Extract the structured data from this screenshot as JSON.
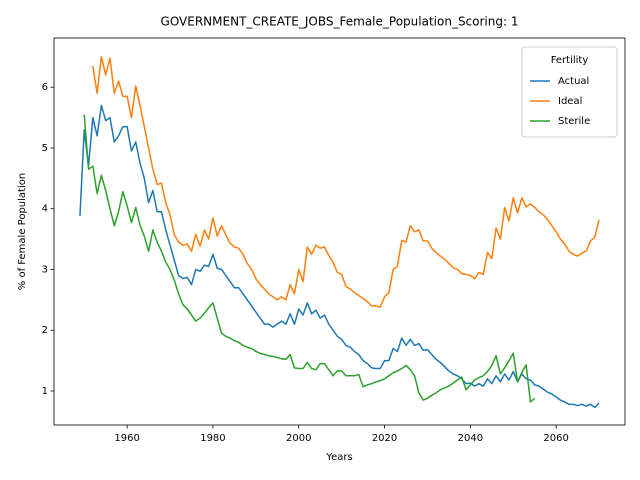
{
  "chart_data": {
    "type": "line",
    "title": "GOVERNMENT_CREATE_JOBS_Female_Population_Scoring: 1",
    "xlabel": "Years",
    "ylabel": "% of Female Population",
    "legend_title": "Fertility",
    "legend": "upper right",
    "xlim": [
      1942.95,
      2076.05
    ],
    "ylim": [
      0.44,
      6.81
    ],
    "xticks": [
      1960,
      1980,
      2000,
      2020,
      2040,
      2060
    ],
    "yticks": [
      1,
      2,
      3,
      4,
      5,
      6
    ],
    "x": [
      1949,
      1950,
      1951,
      1952,
      1953,
      1954,
      1955,
      1956,
      1957,
      1958,
      1959,
      1960,
      1961,
      1962,
      1963,
      1964,
      1965,
      1966,
      1967,
      1968,
      1969,
      1970,
      1971,
      1972,
      1973,
      1974,
      1975,
      1976,
      1977,
      1978,
      1979,
      1980,
      1981,
      1982,
      1983,
      1984,
      1985,
      1986,
      1987,
      1988,
      1989,
      1990,
      1991,
      1992,
      1993,
      1994,
      1995,
      1996,
      1997,
      1998,
      1999,
      2000,
      2001,
      2002,
      2003,
      2004,
      2005,
      2006,
      2007,
      2008,
      2009,
      2010,
      2011,
      2012,
      2013,
      2014,
      2015,
      2016,
      2017,
      2018,
      2019,
      2020,
      2021,
      2022,
      2023,
      2024,
      2025,
      2026,
      2027,
      2028,
      2029,
      2030,
      2031,
      2032,
      2033,
      2034,
      2035,
      2036,
      2037,
      2038,
      2039,
      2040,
      2041,
      2042,
      2043,
      2044,
      2045,
      2046,
      2047,
      2048,
      2049,
      2050,
      2051,
      2052,
      2053,
      2054,
      2055,
      2056,
      2057,
      2058,
      2059,
      2060,
      2061,
      2062,
      2063,
      2064,
      2065,
      2066,
      2067,
      2068,
      2069,
      2070
    ],
    "series": [
      {
        "name": "Actual",
        "color": "#1f77b4",
        "values": [
          3.88,
          5.3,
          4.7,
          5.5,
          5.2,
          5.7,
          5.45,
          5.5,
          5.1,
          5.2,
          5.35,
          5.35,
          4.95,
          5.1,
          4.75,
          4.5,
          4.1,
          4.3,
          3.95,
          3.95,
          3.65,
          3.4,
          3.15,
          2.9,
          2.85,
          2.87,
          2.75,
          3.0,
          2.97,
          3.07,
          3.05,
          3.25,
          3.02,
          3.0,
          2.9,
          2.8,
          2.7,
          2.7,
          2.6,
          2.5,
          2.4,
          2.3,
          2.2,
          2.1,
          2.1,
          2.05,
          2.1,
          2.15,
          2.1,
          2.27,
          2.1,
          2.35,
          2.25,
          2.45,
          2.27,
          2.33,
          2.2,
          2.25,
          2.1,
          2.0,
          1.9,
          1.85,
          1.75,
          1.72,
          1.65,
          1.6,
          1.5,
          1.45,
          1.38,
          1.37,
          1.37,
          1.5,
          1.5,
          1.7,
          1.65,
          1.87,
          1.75,
          1.85,
          1.75,
          1.78,
          1.67,
          1.68,
          1.6,
          1.52,
          1.47,
          1.4,
          1.33,
          1.28,
          1.25,
          1.2,
          1.12,
          1.13,
          1.08,
          1.12,
          1.08,
          1.2,
          1.12,
          1.25,
          1.15,
          1.28,
          1.18,
          1.32,
          1.15,
          1.28,
          1.2,
          1.18,
          1.1,
          1.08,
          1.03,
          0.98,
          0.95,
          0.9,
          0.85,
          0.82,
          0.78,
          0.78,
          0.76,
          0.78,
          0.75,
          0.78,
          0.73,
          0.8
        ]
      },
      {
        "name": "Ideal",
        "color": "#ff7f0e",
        "values": [
          null,
          null,
          null,
          6.35,
          5.9,
          6.5,
          6.2,
          6.48,
          5.9,
          6.1,
          5.85,
          5.85,
          5.5,
          6.02,
          5.7,
          5.35,
          5.0,
          4.65,
          4.4,
          4.42,
          4.1,
          3.9,
          3.57,
          3.45,
          3.4,
          3.42,
          3.3,
          3.58,
          3.38,
          3.65,
          3.5,
          3.85,
          3.55,
          3.72,
          3.57,
          3.43,
          3.37,
          3.35,
          3.25,
          3.1,
          3.0,
          2.85,
          2.75,
          2.68,
          2.6,
          2.55,
          2.5,
          2.55,
          2.5,
          2.75,
          2.6,
          3.0,
          2.8,
          3.37,
          3.25,
          3.4,
          3.35,
          3.37,
          3.23,
          3.12,
          2.95,
          2.92,
          2.72,
          2.68,
          2.62,
          2.57,
          2.52,
          2.47,
          2.4,
          2.4,
          2.38,
          2.55,
          2.62,
          3.0,
          3.05,
          3.48,
          3.45,
          3.72,
          3.62,
          3.65,
          3.47,
          3.47,
          3.35,
          3.28,
          3.22,
          3.17,
          3.1,
          3.03,
          3.0,
          2.93,
          2.92,
          2.9,
          2.85,
          2.95,
          2.92,
          3.28,
          3.18,
          3.68,
          3.5,
          4.02,
          3.8,
          4.18,
          3.93,
          4.18,
          4.03,
          4.08,
          4.02,
          3.95,
          3.9,
          3.82,
          3.72,
          3.62,
          3.5,
          3.42,
          3.3,
          3.25,
          3.22,
          3.27,
          3.3,
          3.47,
          3.53,
          3.82
        ]
      },
      {
        "name": "Sterile",
        "color": "#2ca02c",
        "values": [
          null,
          5.55,
          4.65,
          4.7,
          4.25,
          4.55,
          4.3,
          4.0,
          3.72,
          3.95,
          4.28,
          4.05,
          3.77,
          4.02,
          3.73,
          3.55,
          3.3,
          3.65,
          3.45,
          3.3,
          3.12,
          3.0,
          2.82,
          2.6,
          2.42,
          2.35,
          2.25,
          2.15,
          2.2,
          2.28,
          2.37,
          2.45,
          2.2,
          1.95,
          1.9,
          1.87,
          1.83,
          1.8,
          1.75,
          1.72,
          1.7,
          1.65,
          1.62,
          1.6,
          1.58,
          1.57,
          1.55,
          1.53,
          1.52,
          1.6,
          1.38,
          1.37,
          1.37,
          1.47,
          1.37,
          1.35,
          1.45,
          1.45,
          1.35,
          1.25,
          1.33,
          1.33,
          1.25,
          1.25,
          1.25,
          1.27,
          1.07,
          1.1,
          1.12,
          1.15,
          1.17,
          1.2,
          1.25,
          1.3,
          1.33,
          1.37,
          1.42,
          1.35,
          1.25,
          0.97,
          0.85,
          0.88,
          0.93,
          0.97,
          1.02,
          1.05,
          1.08,
          1.13,
          1.18,
          1.23,
          1.02,
          1.1,
          1.18,
          1.22,
          1.25,
          1.32,
          1.42,
          1.58,
          1.28,
          1.38,
          1.5,
          1.62,
          1.15,
          1.3,
          1.43,
          0.82,
          0.88,
          null,
          null,
          null,
          null,
          null,
          null,
          null,
          null,
          null,
          null,
          null,
          null,
          null,
          null,
          null
        ]
      }
    ]
  }
}
